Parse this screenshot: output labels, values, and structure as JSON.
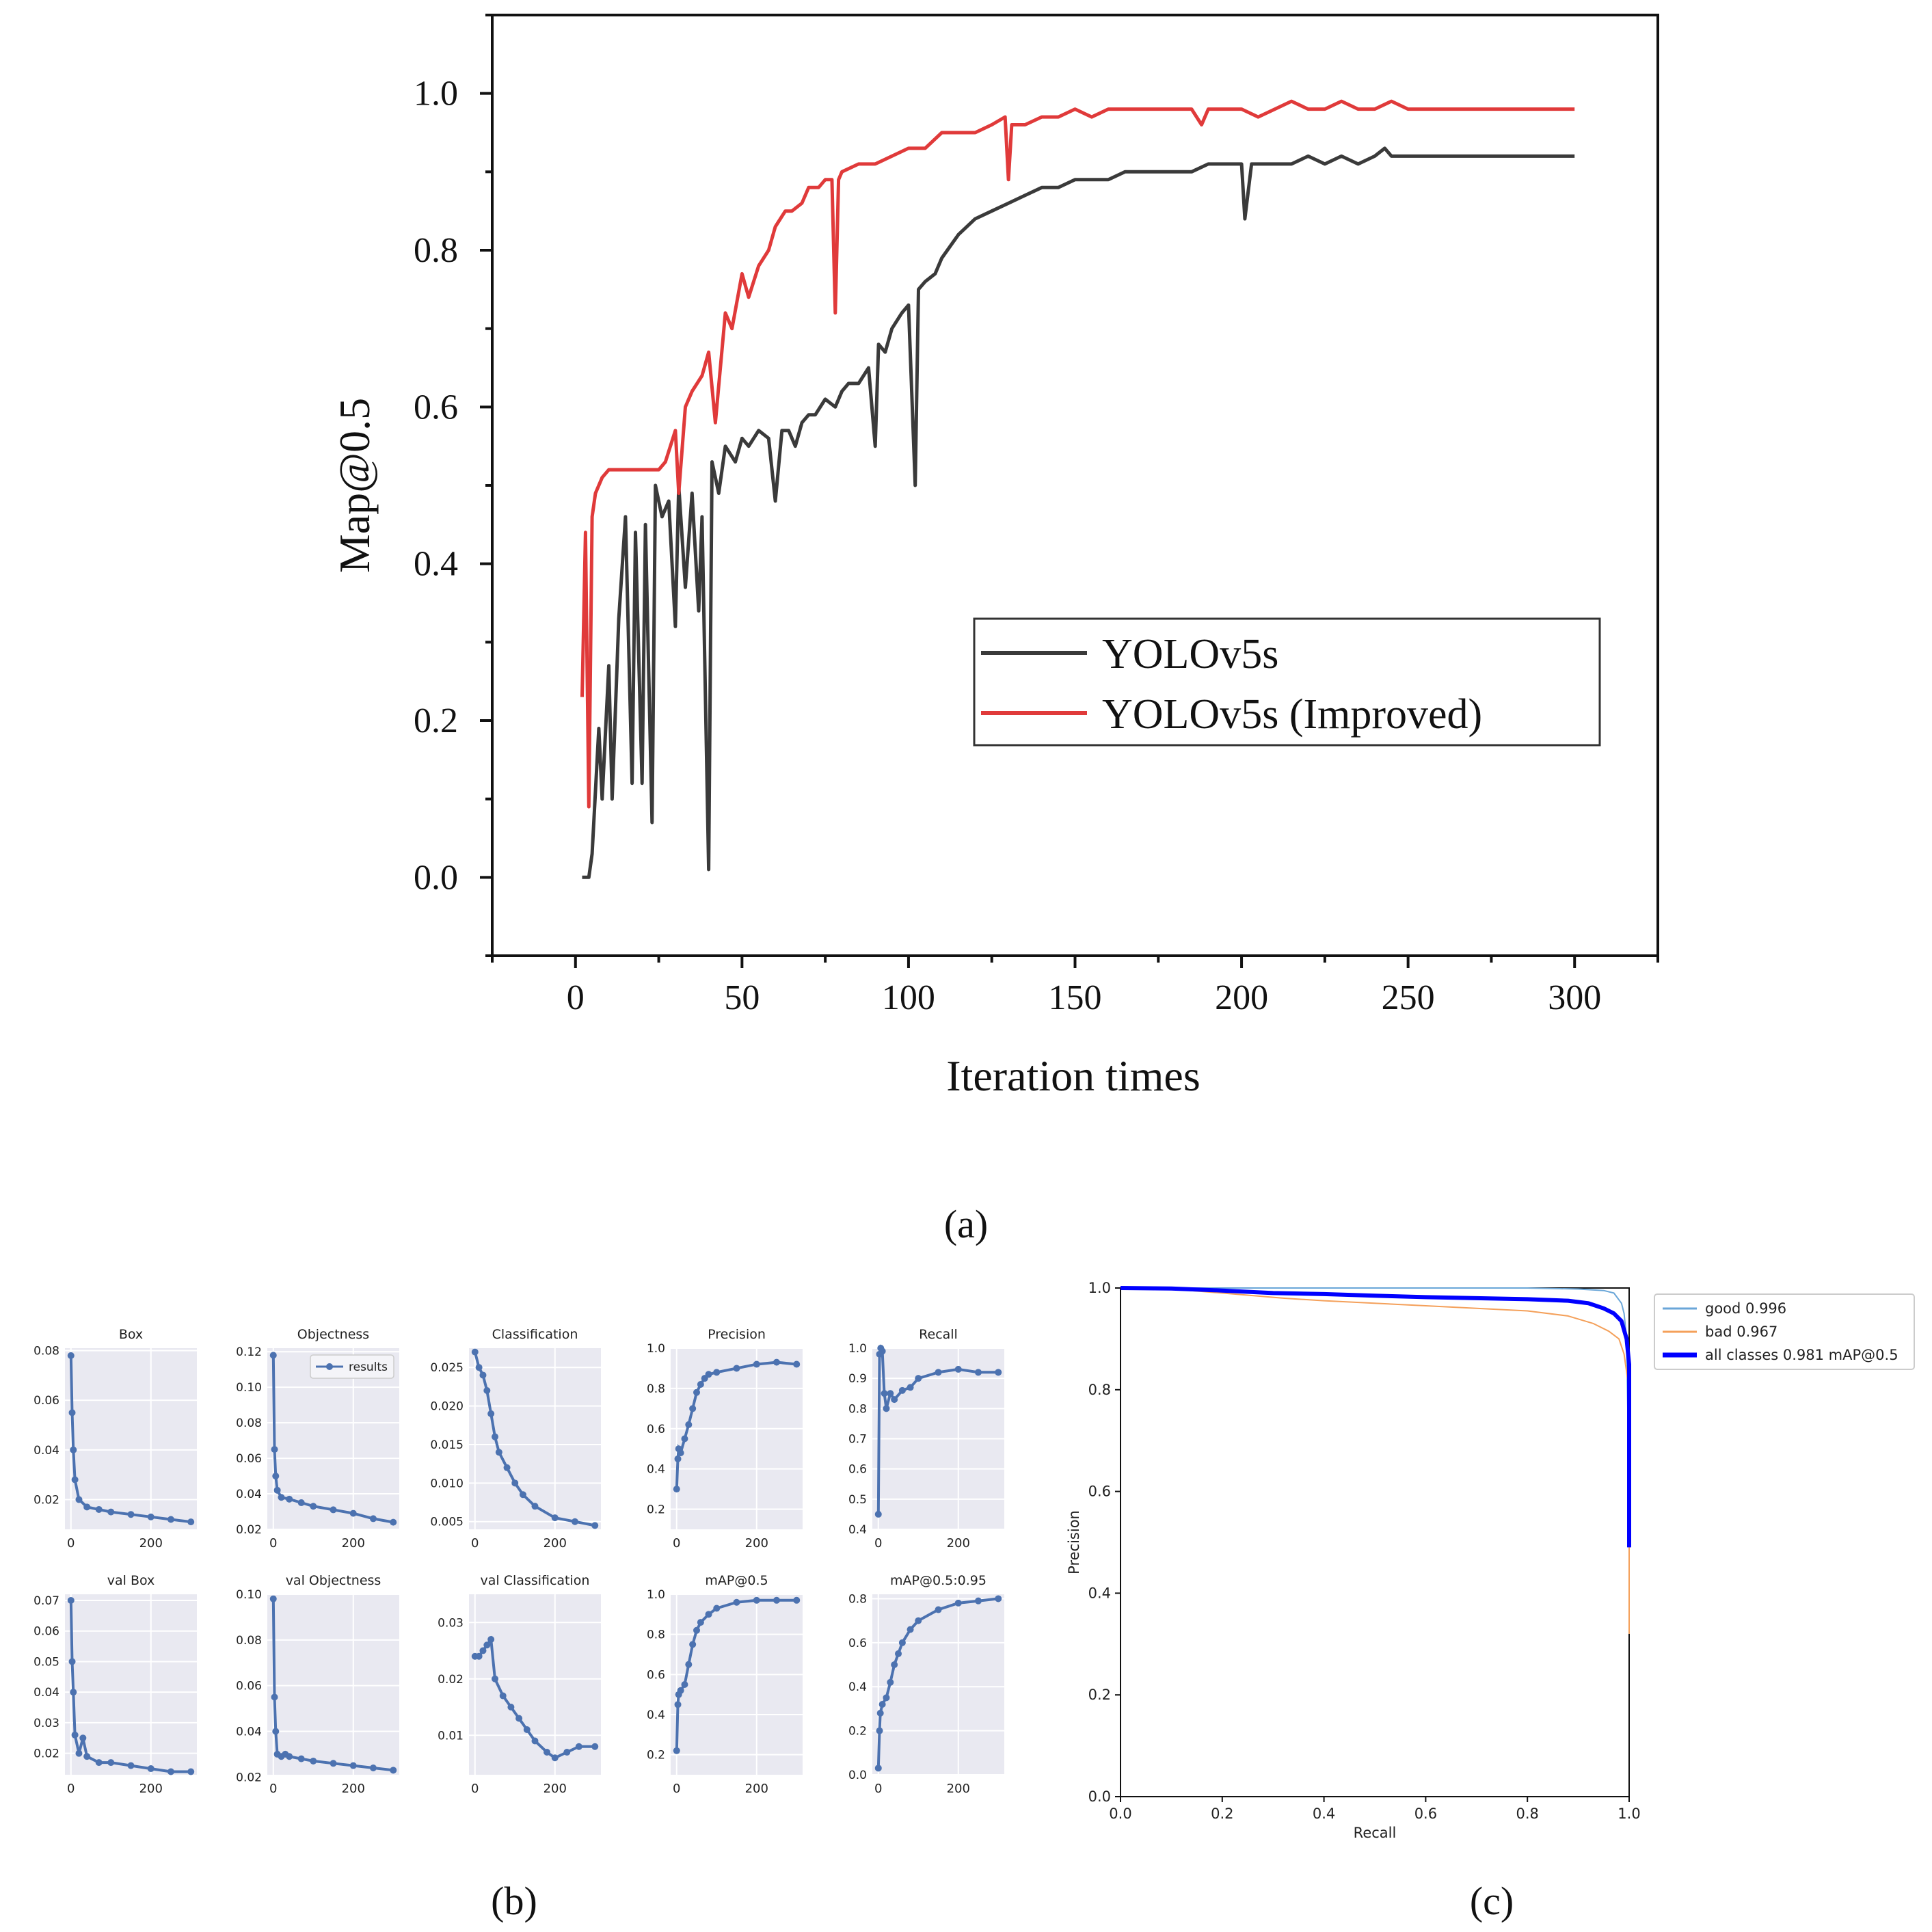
{
  "panel_labels": {
    "a": "(a)",
    "b": "(b)",
    "c": "(c)"
  },
  "colors": {
    "yolo": "#3a3a3a",
    "improved": "#e03a3a",
    "small_plot_bg": "#e9e9f1",
    "small_series": "#4c72b0",
    "pr_good": "#6aa6d8",
    "pr_bad": "#f4a05a",
    "pr_all": "#0000ff"
  },
  "chart_data": [
    {
      "id": "a",
      "type": "line",
      "title": "",
      "xlabel": "Iteration times",
      "ylabel": "Map@0.5",
      "xlim": [
        -25,
        325
      ],
      "ylim": [
        -0.1,
        1.1
      ],
      "xticks": [
        0,
        50,
        100,
        150,
        200,
        250,
        300
      ],
      "yticks": [
        0.0,
        0.2,
        0.4,
        0.6,
        0.8,
        1.0
      ],
      "xtick_labels": [
        "0",
        "50",
        "100",
        "150",
        "200",
        "250",
        "300"
      ],
      "ytick_labels": [
        "0.0",
        "0.2",
        "0.4",
        "0.6",
        "0.8",
        "1.0"
      ],
      "legend_position": "lower-right",
      "series": [
        {
          "name": "YOLOv5s",
          "color_key": "yolo",
          "x": [
            2,
            4,
            5,
            7,
            8,
            10,
            11,
            13,
            15,
            17,
            18,
            20,
            21,
            23,
            24,
            26,
            28,
            30,
            31,
            33,
            35,
            37,
            38,
            40,
            41,
            43,
            45,
            48,
            50,
            52,
            55,
            58,
            60,
            62,
            64,
            66,
            68,
            70,
            72,
            75,
            78,
            80,
            82,
            85,
            88,
            90,
            91,
            93,
            95,
            98,
            100,
            102,
            103,
            105,
            108,
            110,
            115,
            120,
            125,
            130,
            135,
            140,
            145,
            150,
            155,
            160,
            165,
            170,
            175,
            180,
            185,
            190,
            195,
            198,
            200,
            201,
            203,
            205,
            210,
            215,
            220,
            225,
            230,
            235,
            240,
            243,
            245,
            250,
            255,
            260,
            265,
            270,
            275,
            280,
            285,
            290,
            295,
            300
          ],
          "values": [
            0.0,
            0.0,
            0.03,
            0.19,
            0.1,
            0.27,
            0.1,
            0.33,
            0.46,
            0.12,
            0.44,
            0.12,
            0.45,
            0.07,
            0.5,
            0.46,
            0.48,
            0.32,
            0.5,
            0.37,
            0.49,
            0.34,
            0.46,
            0.01,
            0.53,
            0.49,
            0.55,
            0.53,
            0.56,
            0.55,
            0.57,
            0.56,
            0.48,
            0.57,
            0.57,
            0.55,
            0.58,
            0.59,
            0.59,
            0.61,
            0.6,
            0.62,
            0.63,
            0.63,
            0.65,
            0.55,
            0.68,
            0.67,
            0.7,
            0.72,
            0.73,
            0.5,
            0.75,
            0.76,
            0.77,
            0.79,
            0.82,
            0.84,
            0.85,
            0.86,
            0.87,
            0.88,
            0.88,
            0.89,
            0.89,
            0.89,
            0.9,
            0.9,
            0.9,
            0.9,
            0.9,
            0.91,
            0.91,
            0.91,
            0.91,
            0.84,
            0.91,
            0.91,
            0.91,
            0.91,
            0.92,
            0.91,
            0.92,
            0.91,
            0.92,
            0.93,
            0.92,
            0.92,
            0.92,
            0.92,
            0.92,
            0.92,
            0.92,
            0.92,
            0.92,
            0.92,
            0.92,
            0.92
          ]
        },
        {
          "name": "YOLOv5s (Improved)",
          "color_key": "improved",
          "x": [
            2,
            3,
            4,
            5,
            6,
            8,
            10,
            15,
            20,
            25,
            27,
            30,
            31,
            33,
            35,
            38,
            40,
            42,
            45,
            47,
            50,
            52,
            55,
            58,
            60,
            63,
            65,
            68,
            70,
            73,
            75,
            77,
            78,
            79,
            80,
            85,
            90,
            95,
            100,
            103,
            105,
            110,
            115,
            120,
            125,
            129,
            130,
            131,
            135,
            140,
            145,
            150,
            155,
            160,
            165,
            170,
            175,
            180,
            185,
            188,
            190,
            195,
            200,
            205,
            210,
            215,
            220,
            225,
            230,
            235,
            240,
            245,
            250,
            255,
            260,
            265,
            270,
            275,
            280,
            285,
            290,
            295,
            300
          ],
          "values": [
            0.23,
            0.44,
            0.09,
            0.46,
            0.49,
            0.51,
            0.52,
            0.52,
            0.52,
            0.52,
            0.53,
            0.57,
            0.49,
            0.6,
            0.62,
            0.64,
            0.67,
            0.58,
            0.72,
            0.7,
            0.77,
            0.74,
            0.78,
            0.8,
            0.83,
            0.85,
            0.85,
            0.86,
            0.88,
            0.88,
            0.89,
            0.89,
            0.72,
            0.89,
            0.9,
            0.91,
            0.91,
            0.92,
            0.93,
            0.93,
            0.93,
            0.95,
            0.95,
            0.95,
            0.96,
            0.97,
            0.89,
            0.96,
            0.96,
            0.97,
            0.97,
            0.98,
            0.97,
            0.98,
            0.98,
            0.98,
            0.98,
            0.98,
            0.98,
            0.96,
            0.98,
            0.98,
            0.98,
            0.97,
            0.98,
            0.99,
            0.98,
            0.98,
            0.99,
            0.98,
            0.98,
            0.99,
            0.98,
            0.98,
            0.98,
            0.98,
            0.98,
            0.98,
            0.98,
            0.98,
            0.98,
            0.98,
            0.98
          ]
        }
      ]
    },
    {
      "id": "b",
      "type": "line",
      "subplots": [
        {
          "title": "Box",
          "yticks": [
            0.02,
            0.04,
            0.06,
            0.08
          ],
          "ytick_labels": [
            "0.02",
            "0.04",
            "0.06",
            "0.08"
          ],
          "ylim": [
            0.008,
            0.081
          ],
          "x": [
            0,
            3,
            6,
            10,
            20,
            40,
            70,
            100,
            150,
            200,
            250,
            300
          ],
          "values": [
            0.078,
            0.055,
            0.04,
            0.028,
            0.02,
            0.017,
            0.016,
            0.015,
            0.014,
            0.013,
            0.012,
            0.011
          ]
        },
        {
          "title": "Objectness",
          "legend": "results",
          "yticks": [
            0.02,
            0.04,
            0.06,
            0.08,
            0.1,
            0.12
          ],
          "ytick_labels": [
            "0.02",
            "0.04",
            "0.06",
            "0.08",
            "0.10",
            "0.12"
          ],
          "ylim": [
            0.02,
            0.122
          ],
          "x": [
            0,
            3,
            6,
            10,
            20,
            40,
            70,
            100,
            150,
            200,
            250,
            300
          ],
          "values": [
            0.118,
            0.065,
            0.05,
            0.042,
            0.038,
            0.037,
            0.035,
            0.033,
            0.031,
            0.029,
            0.026,
            0.024
          ]
        },
        {
          "title": "Classification",
          "yticks": [
            0.005,
            0.01,
            0.015,
            0.02,
            0.025
          ],
          "ytick_labels": [
            "0.005",
            "0.010",
            "0.015",
            "0.020",
            "0.025"
          ],
          "ylim": [
            0.004,
            0.0275
          ],
          "x": [
            0,
            10,
            20,
            30,
            40,
            50,
            60,
            80,
            100,
            120,
            150,
            200,
            250,
            300
          ],
          "values": [
            0.027,
            0.025,
            0.024,
            0.022,
            0.019,
            0.016,
            0.014,
            0.012,
            0.01,
            0.0085,
            0.007,
            0.0055,
            0.005,
            0.0045
          ]
        },
        {
          "title": "Precision",
          "yticks": [
            0.2,
            0.4,
            0.6,
            0.8,
            1.0
          ],
          "ytick_labels": [
            "0.2",
            "0.4",
            "0.6",
            "0.8",
            "1.0"
          ],
          "ylim": [
            0.1,
            1.0
          ],
          "x": [
            0,
            3,
            5,
            10,
            20,
            30,
            40,
            50,
            60,
            70,
            80,
            100,
            150,
            200,
            250,
            300
          ],
          "values": [
            0.3,
            0.45,
            0.5,
            0.48,
            0.55,
            0.62,
            0.7,
            0.78,
            0.82,
            0.85,
            0.87,
            0.88,
            0.9,
            0.92,
            0.93,
            0.92
          ]
        },
        {
          "title": "Recall",
          "yticks": [
            0.4,
            0.5,
            0.6,
            0.7,
            0.8,
            0.9,
            1.0
          ],
          "ytick_labels": [
            "0.4",
            "0.5",
            "0.6",
            "0.7",
            "0.8",
            "0.9",
            "1.0"
          ],
          "ylim": [
            0.4,
            1.0
          ],
          "x": [
            0,
            3,
            6,
            10,
            15,
            20,
            30,
            40,
            60,
            80,
            100,
            150,
            200,
            250,
            300
          ],
          "values": [
            0.45,
            0.98,
            1.0,
            0.99,
            0.85,
            0.8,
            0.85,
            0.83,
            0.86,
            0.87,
            0.9,
            0.92,
            0.93,
            0.92,
            0.92
          ]
        },
        {
          "title": "val Box",
          "yticks": [
            0.02,
            0.03,
            0.04,
            0.05,
            0.06,
            0.07
          ],
          "ytick_labels": [
            "0.02",
            "0.03",
            "0.04",
            "0.05",
            "0.06",
            "0.07"
          ],
          "ylim": [
            0.013,
            0.072
          ],
          "x": [
            0,
            3,
            6,
            10,
            20,
            30,
            40,
            70,
            100,
            150,
            200,
            250,
            300
          ],
          "values": [
            0.07,
            0.05,
            0.04,
            0.026,
            0.02,
            0.025,
            0.019,
            0.017,
            0.017,
            0.016,
            0.015,
            0.014,
            0.014
          ]
        },
        {
          "title": "val Objectness",
          "yticks": [
            0.02,
            0.04,
            0.06,
            0.08,
            0.1
          ],
          "ytick_labels": [
            "0.02",
            "0.04",
            "0.06",
            "0.08",
            "0.10"
          ],
          "ylim": [
            0.021,
            0.1
          ],
          "x": [
            0,
            3,
            6,
            10,
            20,
            30,
            40,
            70,
            100,
            150,
            200,
            250,
            300
          ],
          "values": [
            0.098,
            0.055,
            0.04,
            0.03,
            0.029,
            0.03,
            0.029,
            0.028,
            0.027,
            0.026,
            0.025,
            0.024,
            0.023
          ]
        },
        {
          "title": "val Classification",
          "yticks": [
            0.01,
            0.02,
            0.03
          ],
          "ytick_labels": [
            "0.01",
            "0.02",
            "0.03"
          ],
          "ylim": [
            0.003,
            0.035
          ],
          "x": [
            0,
            10,
            20,
            30,
            40,
            50,
            70,
            90,
            110,
            130,
            150,
            180,
            200,
            230,
            260,
            300
          ],
          "values": [
            0.024,
            0.024,
            0.025,
            0.026,
            0.027,
            0.02,
            0.017,
            0.015,
            0.013,
            0.011,
            0.009,
            0.007,
            0.006,
            0.007,
            0.008,
            0.008
          ]
        },
        {
          "title": "mAP@0.5",
          "yticks": [
            0.2,
            0.4,
            0.6,
            0.8,
            1.0
          ],
          "ytick_labels": [
            "0.2",
            "0.4",
            "0.6",
            "0.8",
            "1.0"
          ],
          "ylim": [
            0.1,
            1.0
          ],
          "x": [
            0,
            3,
            5,
            10,
            20,
            30,
            40,
            50,
            60,
            80,
            100,
            150,
            200,
            250,
            300
          ],
          "values": [
            0.22,
            0.45,
            0.5,
            0.52,
            0.55,
            0.65,
            0.75,
            0.82,
            0.86,
            0.9,
            0.93,
            0.96,
            0.97,
            0.97,
            0.97
          ]
        },
        {
          "title": "mAP@0.5:0.95",
          "yticks": [
            0.0,
            0.2,
            0.4,
            0.6,
            0.8
          ],
          "ytick_labels": [
            "0.0",
            "0.2",
            "0.4",
            "0.6",
            "0.8"
          ],
          "ylim": [
            0.0,
            0.82
          ],
          "x": [
            0,
            3,
            5,
            10,
            20,
            30,
            40,
            50,
            60,
            80,
            100,
            150,
            200,
            250,
            300
          ],
          "values": [
            0.03,
            0.2,
            0.28,
            0.32,
            0.35,
            0.42,
            0.5,
            0.55,
            0.6,
            0.66,
            0.7,
            0.75,
            0.78,
            0.79,
            0.8
          ]
        }
      ],
      "xticks": [
        0,
        200
      ],
      "xtick_labels": [
        "0",
        "200"
      ],
      "xlim": [
        -15,
        315
      ]
    },
    {
      "id": "c",
      "type": "line",
      "xlabel": "Recall",
      "ylabel": "Precision",
      "xlim": [
        0,
        1
      ],
      "ylim": [
        0,
        1
      ],
      "xticks": [
        0,
        0.2,
        0.4,
        0.6,
        0.8,
        1.0
      ],
      "yticks": [
        0,
        0.2,
        0.4,
        0.6,
        0.8,
        1.0
      ],
      "xtick_labels": [
        "0.0",
        "0.2",
        "0.4",
        "0.6",
        "0.8",
        "1.0"
      ],
      "ytick_labels": [
        "0.0",
        "0.2",
        "0.4",
        "0.6",
        "0.8",
        "1.0"
      ],
      "legend_position": "outside-upper-right",
      "series": [
        {
          "name": "good 0.996",
          "color_key": "pr_good",
          "x": [
            0,
            0.5,
            0.8,
            0.9,
            0.95,
            0.97,
            0.985,
            0.99,
            0.995,
            1.0,
            1.0
          ],
          "values": [
            1.0,
            1.0,
            1.0,
            0.998,
            0.995,
            0.99,
            0.97,
            0.95,
            0.9,
            0.6,
            0.32
          ]
        },
        {
          "name": "bad 0.967",
          "color_key": "pr_bad",
          "x": [
            0,
            0.1,
            0.2,
            0.32,
            0.4,
            0.6,
            0.7,
            0.8,
            0.88,
            0.93,
            0.96,
            0.98,
            0.99,
            1.0,
            1.0
          ],
          "values": [
            1.0,
            0.998,
            0.99,
            0.98,
            0.975,
            0.965,
            0.96,
            0.955,
            0.945,
            0.93,
            0.915,
            0.9,
            0.87,
            0.8,
            0.32
          ]
        },
        {
          "name": "all classes 0.981 mAP@0.5",
          "color_key": "pr_all",
          "x": [
            0,
            0.1,
            0.2,
            0.3,
            0.4,
            0.5,
            0.6,
            0.7,
            0.8,
            0.88,
            0.92,
            0.95,
            0.97,
            0.985,
            0.995,
            1.0,
            1.0
          ],
          "values": [
            1.0,
            0.999,
            0.995,
            0.99,
            0.988,
            0.985,
            0.982,
            0.98,
            0.978,
            0.975,
            0.97,
            0.96,
            0.95,
            0.935,
            0.9,
            0.85,
            0.49
          ]
        }
      ]
    }
  ]
}
